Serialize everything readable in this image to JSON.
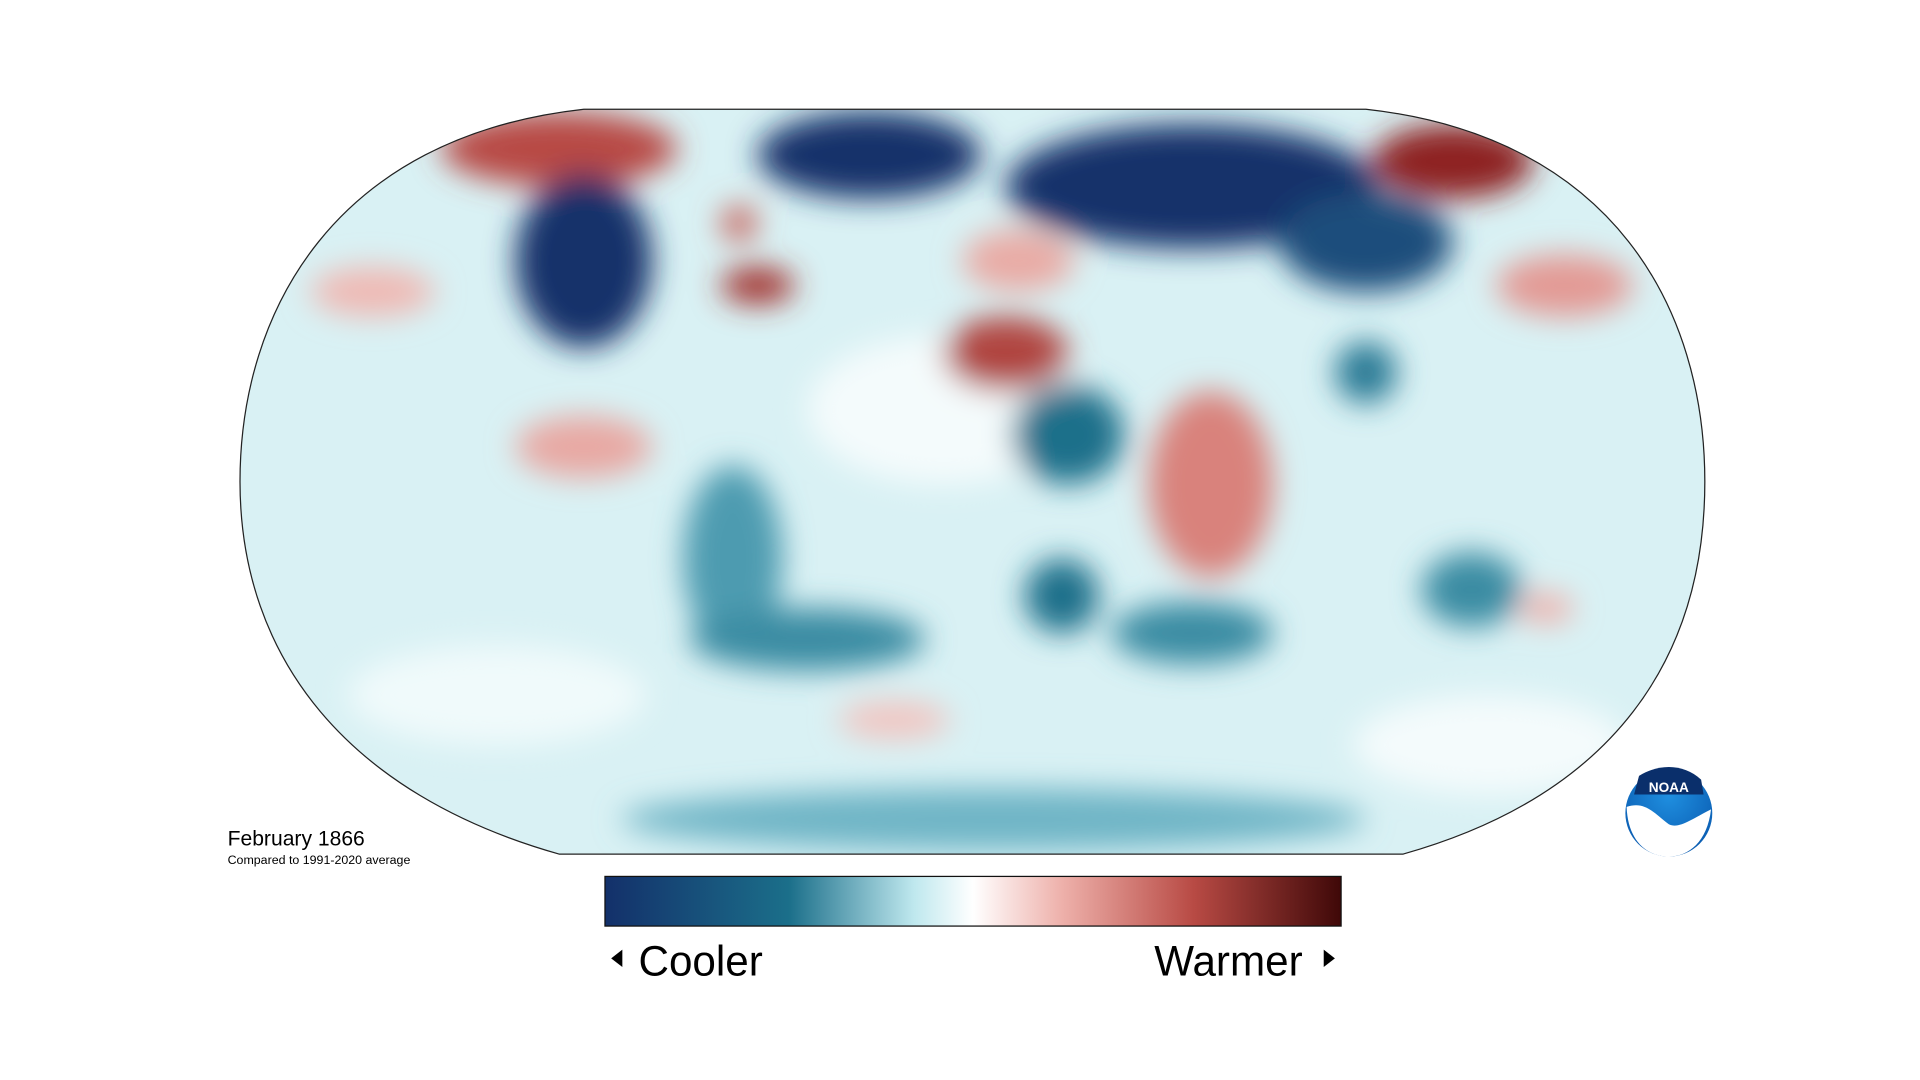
{
  "title": "February 1866",
  "subtitle": "Compared to 1991-2020 average",
  "legend": {
    "low_label": "Cooler",
    "high_label": "Warmer"
  },
  "logo": "NOAA"
}
